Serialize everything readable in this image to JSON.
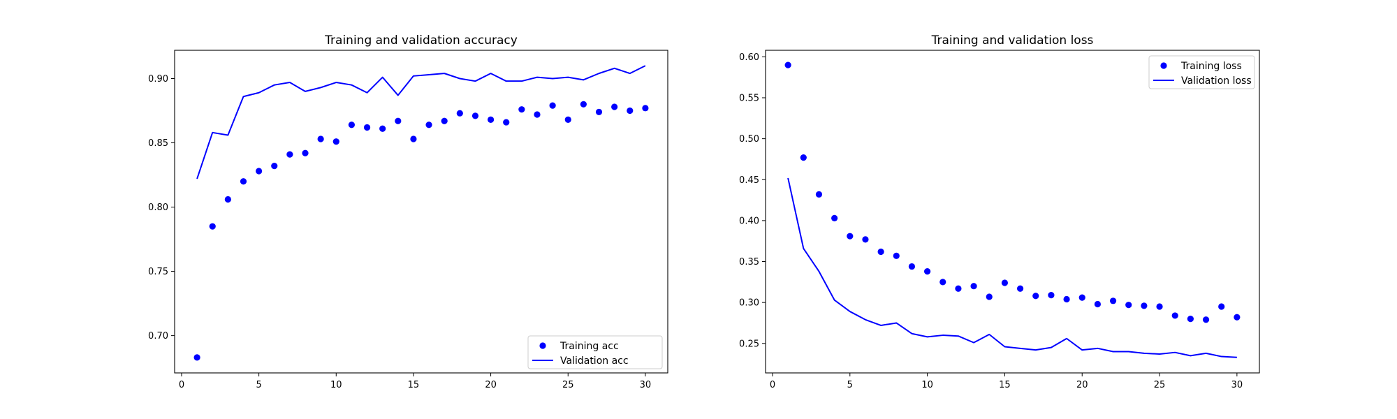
{
  "chart_data": [
    {
      "type": "line",
      "title": "Training and validation accuracy",
      "xlabel": "",
      "ylabel": "",
      "xlim": [
        -0.45,
        31.45
      ],
      "ylim": [
        0.671,
        0.922
      ],
      "xticks": [
        0,
        5,
        10,
        15,
        20,
        25,
        30
      ],
      "yticks": [
        0.7,
        0.75,
        0.8,
        0.85,
        0.9
      ],
      "ytick_labels": [
        "0.70",
        "0.75",
        "0.80",
        "0.85",
        "0.90"
      ],
      "grid": false,
      "legend_position": "lower-right",
      "x": [
        1,
        2,
        3,
        4,
        5,
        6,
        7,
        8,
        9,
        10,
        11,
        12,
        13,
        14,
        15,
        16,
        17,
        18,
        19,
        20,
        21,
        22,
        23,
        24,
        25,
        26,
        27,
        28,
        29,
        30
      ],
      "series": [
        {
          "name": "Training acc",
          "style": "points",
          "color": "#0000ff",
          "values": [
            0.683,
            0.785,
            0.806,
            0.82,
            0.828,
            0.832,
            0.841,
            0.842,
            0.853,
            0.851,
            0.864,
            0.862,
            0.861,
            0.867,
            0.853,
            0.864,
            0.867,
            0.873,
            0.871,
            0.868,
            0.866,
            0.876,
            0.872,
            0.879,
            0.868,
            0.88,
            0.874,
            0.878,
            0.875,
            0.877
          ]
        },
        {
          "name": "Validation acc",
          "style": "line",
          "color": "#0000ff",
          "values": [
            0.822,
            0.858,
            0.856,
            0.886,
            0.889,
            0.895,
            0.897,
            0.89,
            0.893,
            0.897,
            0.895,
            0.889,
            0.901,
            0.887,
            0.902,
            0.903,
            0.904,
            0.9,
            0.898,
            0.904,
            0.898,
            0.898,
            0.901,
            0.9,
            0.901,
            0.899,
            0.904,
            0.908,
            0.904,
            0.91
          ]
        }
      ]
    },
    {
      "type": "line",
      "title": "Training and validation loss",
      "xlabel": "",
      "ylabel": "",
      "xlim": [
        -0.45,
        31.45
      ],
      "ylim": [
        0.214,
        0.608
      ],
      "xticks": [
        0,
        5,
        10,
        15,
        20,
        25,
        30
      ],
      "yticks": [
        0.25,
        0.3,
        0.35,
        0.4,
        0.45,
        0.5,
        0.55,
        0.6
      ],
      "ytick_labels": [
        "0.25",
        "0.30",
        "0.35",
        "0.40",
        "0.45",
        "0.50",
        "0.55",
        "0.60"
      ],
      "grid": false,
      "legend_position": "upper-right",
      "x": [
        1,
        2,
        3,
        4,
        5,
        6,
        7,
        8,
        9,
        10,
        11,
        12,
        13,
        14,
        15,
        16,
        17,
        18,
        19,
        20,
        21,
        22,
        23,
        24,
        25,
        26,
        27,
        28,
        29,
        30
      ],
      "series": [
        {
          "name": "Training loss",
          "style": "points",
          "color": "#0000ff",
          "values": [
            0.59,
            0.477,
            0.432,
            0.403,
            0.381,
            0.377,
            0.362,
            0.357,
            0.344,
            0.338,
            0.325,
            0.317,
            0.32,
            0.307,
            0.324,
            0.317,
            0.308,
            0.309,
            0.304,
            0.306,
            0.298,
            0.302,
            0.297,
            0.296,
            0.295,
            0.284,
            0.28,
            0.279,
            0.295,
            0.282
          ]
        },
        {
          "name": "Validation loss",
          "style": "line",
          "color": "#0000ff",
          "values": [
            0.452,
            0.366,
            0.338,
            0.303,
            0.289,
            0.279,
            0.272,
            0.275,
            0.262,
            0.258,
            0.26,
            0.259,
            0.251,
            0.261,
            0.246,
            0.244,
            0.242,
            0.245,
            0.256,
            0.242,
            0.244,
            0.24,
            0.24,
            0.238,
            0.237,
            0.239,
            0.235,
            0.238,
            0.234,
            0.233
          ]
        }
      ]
    }
  ]
}
